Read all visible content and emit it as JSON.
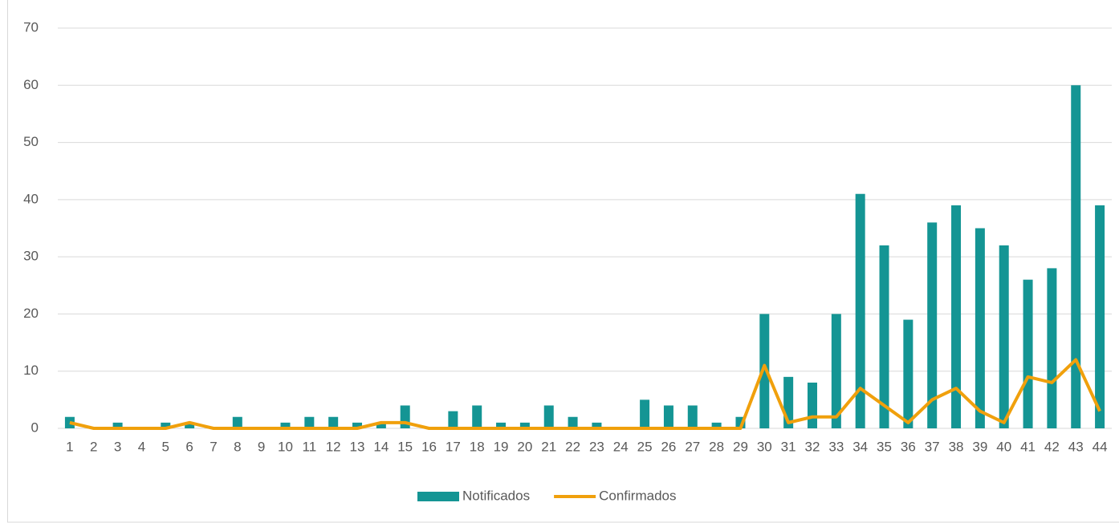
{
  "chart_data": {
    "type": "bar-line",
    "categories": [
      "1",
      "2",
      "3",
      "4",
      "5",
      "6",
      "7",
      "8",
      "9",
      "10",
      "11",
      "12",
      "13",
      "14",
      "15",
      "16",
      "17",
      "18",
      "19",
      "20",
      "21",
      "22",
      "23",
      "24",
      "25",
      "26",
      "27",
      "28",
      "29",
      "30",
      "31",
      "32",
      "33",
      "34",
      "35",
      "36",
      "37",
      "38",
      "39",
      "40",
      "41",
      "42",
      "43",
      "44"
    ],
    "series": [
      {
        "name": "Notificados",
        "type": "bar",
        "color": "#149594",
        "values": [
          2,
          0,
          1,
          0,
          1,
          1,
          0,
          2,
          0,
          1,
          2,
          2,
          1,
          1,
          4,
          0,
          3,
          4,
          1,
          1,
          4,
          2,
          1,
          0,
          5,
          4,
          4,
          1,
          2,
          20,
          9,
          8,
          20,
          41,
          32,
          19,
          36,
          39,
          35,
          32,
          26,
          28,
          60,
          39
        ]
      },
      {
        "name": "Confirmados",
        "type": "line",
        "color": "#f0a00c",
        "values": [
          1,
          0,
          0,
          0,
          0,
          1,
          0,
          0,
          0,
          0,
          0,
          0,
          0,
          1,
          1,
          0,
          0,
          0,
          0,
          0,
          0,
          0,
          0,
          0,
          0,
          0,
          0,
          0,
          0,
          11,
          1,
          2,
          2,
          7,
          4,
          1,
          5,
          7,
          3,
          1,
          9,
          8,
          12,
          3
        ]
      }
    ],
    "ylim": [
      0,
      70
    ],
    "yticks": [
      0,
      10,
      20,
      30,
      40,
      50,
      60,
      70
    ],
    "grid": true,
    "legend": "bottom"
  }
}
